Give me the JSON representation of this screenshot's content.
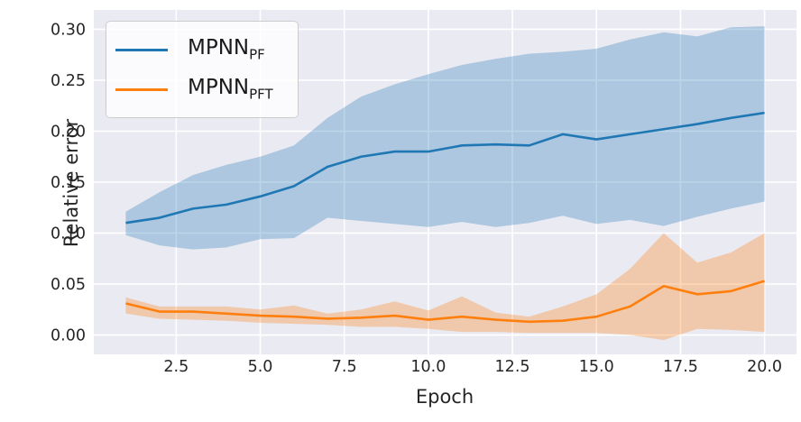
{
  "chart_data": {
    "type": "line",
    "title": "",
    "xlabel": "Epoch",
    "ylabel": "Relative error",
    "grid": true,
    "legend_position": "upper left",
    "band_alpha": 0.3,
    "xlim": [
      0.05,
      20.95
    ],
    "ylim": [
      -0.019,
      0.319
    ],
    "x": [
      1,
      2,
      3,
      4,
      5,
      6,
      7,
      8,
      9,
      10,
      11,
      12,
      13,
      14,
      15,
      16,
      17,
      18,
      19,
      20
    ],
    "xticks": [
      2.5,
      5.0,
      7.5,
      10.0,
      12.5,
      15.0,
      17.5,
      20.0
    ],
    "xtick_labels": [
      "2.5",
      "5.0",
      "7.5",
      "10.0",
      "12.5",
      "15.0",
      "17.5",
      "20.0"
    ],
    "yticks": [
      0.0,
      0.05,
      0.1,
      0.15,
      0.2,
      0.25,
      0.3
    ],
    "ytick_labels": [
      "0.00",
      "0.05",
      "0.10",
      "0.15",
      "0.20",
      "0.25",
      "0.30"
    ],
    "series": [
      {
        "name": "MPNN_PF",
        "label_main": "MPNN",
        "label_sub": "PF",
        "color": "#1f77b4",
        "values": [
          0.11,
          0.115,
          0.124,
          0.128,
          0.136,
          0.146,
          0.165,
          0.175,
          0.18,
          0.18,
          0.186,
          0.187,
          0.186,
          0.197,
          0.192,
          0.197,
          0.202,
          0.207,
          0.213,
          0.218
        ],
        "band_upper": [
          0.121,
          0.14,
          0.157,
          0.167,
          0.175,
          0.186,
          0.213,
          0.234,
          0.246,
          0.256,
          0.265,
          0.271,
          0.276,
          0.278,
          0.281,
          0.29,
          0.297,
          0.293,
          0.302,
          0.303
        ],
        "band_lower": [
          0.098,
          0.088,
          0.084,
          0.086,
          0.094,
          0.095,
          0.115,
          0.112,
          0.109,
          0.106,
          0.111,
          0.106,
          0.11,
          0.117,
          0.109,
          0.113,
          0.107,
          0.116,
          0.124,
          0.131
        ]
      },
      {
        "name": "MPNN_PFT",
        "label_main": "MPNN",
        "label_sub": "PFT",
        "color": "#ff7f0e",
        "values": [
          0.031,
          0.023,
          0.023,
          0.021,
          0.019,
          0.018,
          0.016,
          0.017,
          0.019,
          0.015,
          0.018,
          0.015,
          0.013,
          0.014,
          0.018,
          0.028,
          0.048,
          0.04,
          0.043,
          0.053
        ],
        "band_upper": [
          0.037,
          0.028,
          0.028,
          0.028,
          0.025,
          0.029,
          0.021,
          0.025,
          0.033,
          0.024,
          0.038,
          0.022,
          0.018,
          0.028,
          0.04,
          0.065,
          0.1,
          0.071,
          0.081,
          0.1
        ],
        "band_lower": [
          0.021,
          0.016,
          0.015,
          0.014,
          0.012,
          0.011,
          0.01,
          0.008,
          0.008,
          0.006,
          0.003,
          0.003,
          0.002,
          0.002,
          0.002,
          0.0,
          -0.005,
          0.006,
          0.005,
          0.003
        ]
      }
    ],
    "colors": {
      "figure_bg": "#ffffff",
      "plot_bg": "#eaeaf2",
      "grid": "#ffffff",
      "text": "#262626",
      "series_blue": "#1f77b4",
      "series_orange": "#ff7f0e"
    }
  }
}
